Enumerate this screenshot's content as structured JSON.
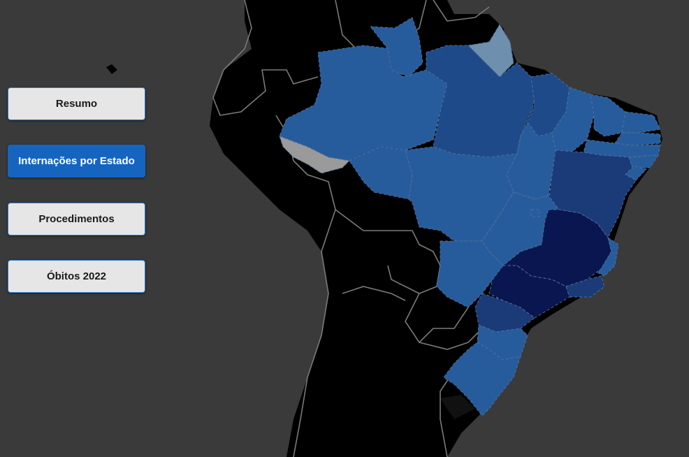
{
  "nav": {
    "active": "internacoes",
    "buttons": [
      {
        "id": "resumo",
        "label": "Resumo"
      },
      {
        "id": "internacoes",
        "label": "Internações por Estado"
      },
      {
        "id": "procedimentos",
        "label": "Procedimentos"
      },
      {
        "id": "obitos",
        "label": "Óbitos 2022"
      }
    ]
  },
  "map": {
    "background_color": "#3a3a3a",
    "land_color": "#000000",
    "border_color": "#7a7a7a",
    "choropleth_levels": {
      "no_data": "#9a9a9a",
      "very_low": "#6f8fae",
      "low": "#275c9c",
      "medium": "#1f4a8a",
      "high": "#1a3a78",
      "very_high": "#0a1650"
    },
    "states": [
      {
        "uf": "AC",
        "level": "no_data"
      },
      {
        "uf": "AM",
        "level": "low"
      },
      {
        "uf": "RR",
        "level": "low"
      },
      {
        "uf": "AP",
        "level": "very_low"
      },
      {
        "uf": "PA",
        "level": "medium"
      },
      {
        "uf": "MA",
        "level": "medium"
      },
      {
        "uf": "PI",
        "level": "low"
      },
      {
        "uf": "CE",
        "level": "low"
      },
      {
        "uf": "RN",
        "level": "low"
      },
      {
        "uf": "PB",
        "level": "low"
      },
      {
        "uf": "PE",
        "level": "low"
      },
      {
        "uf": "AL",
        "level": "low"
      },
      {
        "uf": "SE",
        "level": "low"
      },
      {
        "uf": "BA",
        "level": "high"
      },
      {
        "uf": "TO",
        "level": "low"
      },
      {
        "uf": "RO",
        "level": "low"
      },
      {
        "uf": "MT",
        "level": "low"
      },
      {
        "uf": "GO",
        "level": "low"
      },
      {
        "uf": "DF",
        "level": "low"
      },
      {
        "uf": "MS",
        "level": "low"
      },
      {
        "uf": "MG",
        "level": "very_high"
      },
      {
        "uf": "ES",
        "level": "low"
      },
      {
        "uf": "RJ",
        "level": "high"
      },
      {
        "uf": "SP",
        "level": "very_high"
      },
      {
        "uf": "PR",
        "level": "high"
      },
      {
        "uf": "SC",
        "level": "low"
      },
      {
        "uf": "RS",
        "level": "low"
      }
    ]
  }
}
